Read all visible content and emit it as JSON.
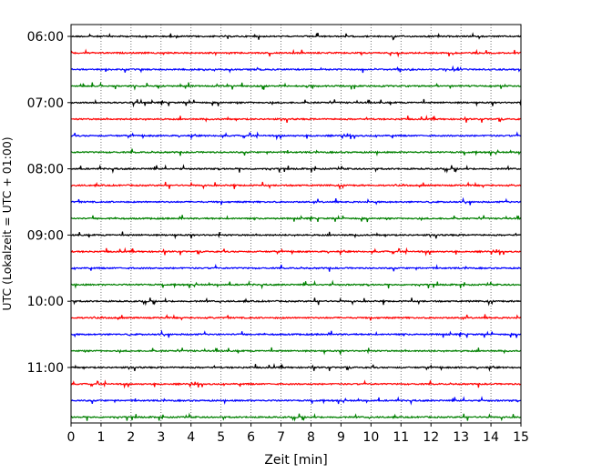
{
  "chart_data": {
    "type": "line",
    "subtype": "helicorder-seismogram",
    "title": "",
    "xlabel": "Zeit  [min]",
    "ylabel": "UTC (Lokalzeit = UTC + 01:00)",
    "xlim": [
      0,
      15
    ],
    "xticks": [
      "0",
      "1",
      "2",
      "3",
      "4",
      "5",
      "6",
      "7",
      "8",
      "9",
      "10",
      "11",
      "12",
      "13",
      "14",
      "15"
    ],
    "grid": "vertical dotted lines at each minute",
    "legend": "none",
    "row_interval_minutes": 15,
    "ytick_labels": [
      {
        "row": 0,
        "label": "06:00"
      },
      {
        "row": 4,
        "label": "07:00"
      },
      {
        "row": 8,
        "label": "08:00"
      },
      {
        "row": 12,
        "label": "09:00"
      },
      {
        "row": 16,
        "label": "10:00"
      },
      {
        "row": 20,
        "label": "11:00"
      }
    ],
    "row_start_times": [
      "06:00",
      "06:15",
      "06:30",
      "06:45",
      "07:00",
      "07:15",
      "07:30",
      "07:45",
      "08:00",
      "08:15",
      "08:30",
      "08:45",
      "09:00",
      "09:15",
      "09:30",
      "09:45",
      "10:00",
      "10:15",
      "10:30",
      "10:45",
      "11:00",
      "11:15",
      "11:30",
      "11:45"
    ],
    "color_cycle": [
      "#000000",
      "#ff0000",
      "#0000ff",
      "#008000"
    ]
  }
}
